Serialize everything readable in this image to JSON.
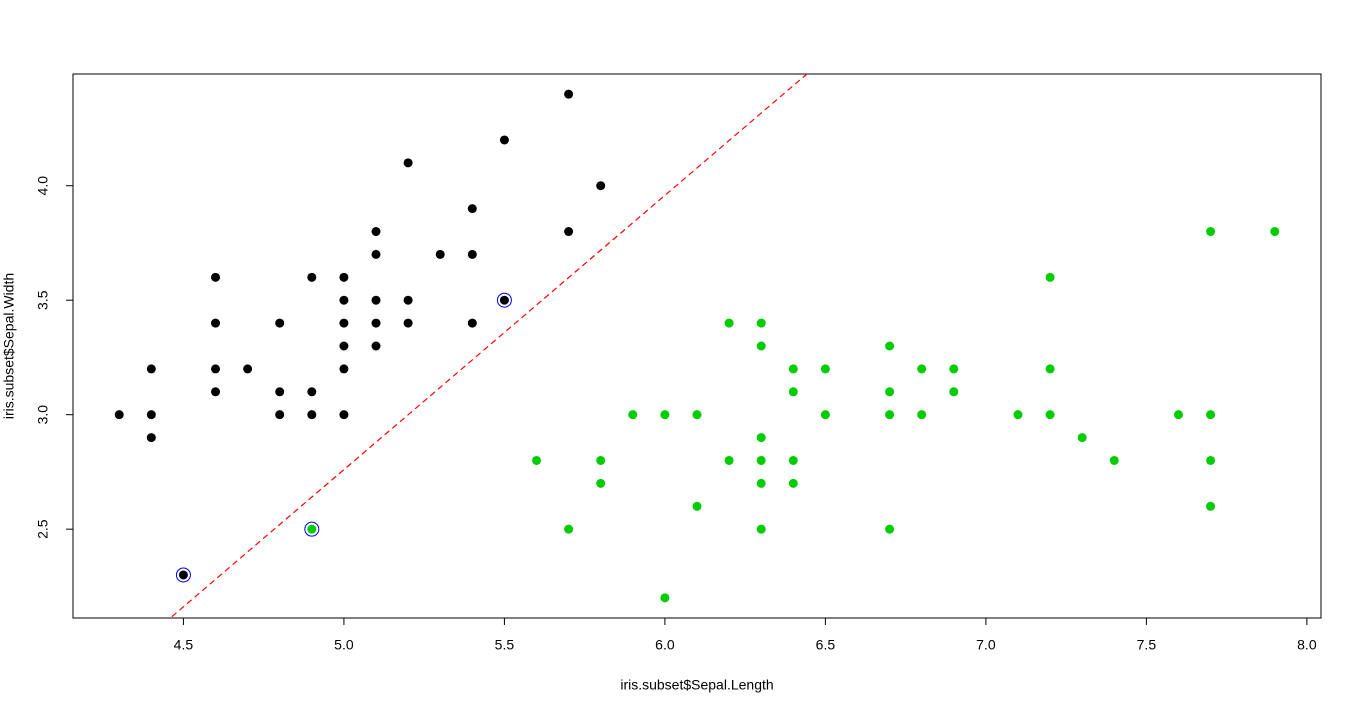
{
  "chart_data": {
    "type": "scatter",
    "x_label": "iris.subset$Sepal.Length",
    "y_label": "iris.subset$Sepal.Width",
    "xlim": [
      4.156,
      8.044
    ],
    "ylim": [
      2.112,
      4.488
    ],
    "xticks": [
      4.5,
      {
        "value": 5,
        "label": "5.0"
      },
      5.5,
      {
        "value": 6,
        "label": "6.0"
      },
      6.5,
      {
        "value": 7,
        "label": "7.0"
      },
      7.5,
      {
        "value": 8,
        "label": "8.0"
      }
    ],
    "yticks": [
      2.5,
      {
        "value": 3,
        "label": "3.0"
      },
      3.5,
      {
        "value": 4,
        "label": "4.0"
      }
    ],
    "series": [
      {
        "color": "#000000",
        "marker": "dot",
        "x": [
          4.3,
          4.4,
          4.4,
          4.4,
          4.5,
          4.6,
          4.6,
          4.6,
          4.6,
          4.7,
          4.8,
          4.8,
          4.8,
          4.9,
          4.9,
          4.9,
          5.0,
          5.0,
          5.0,
          5.0,
          5.0,
          5.0,
          5.1,
          5.1,
          5.1,
          5.1,
          5.1,
          5.2,
          5.2,
          5.2,
          5.3,
          5.4,
          5.4,
          5.4,
          5.5,
          5.5,
          5.7,
          5.7,
          5.8
        ],
        "y": [
          3.0,
          3.2,
          3.0,
          2.9,
          2.3,
          3.6,
          3.4,
          3.2,
          3.1,
          3.2,
          3.4,
          3.1,
          3.0,
          3.6,
          3.1,
          3.0,
          3.6,
          3.5,
          3.4,
          3.3,
          3.2,
          3.0,
          3.8,
          3.7,
          3.5,
          3.4,
          3.3,
          4.1,
          3.5,
          3.4,
          3.7,
          3.9,
          3.7,
          3.4,
          4.2,
          3.5,
          4.4,
          3.8,
          4.0
        ]
      },
      {
        "color": "#00cd00",
        "marker": "dot",
        "x": [
          4.9,
          5.6,
          5.7,
          5.8,
          5.8,
          5.9,
          6.0,
          6.0,
          6.1,
          6.1,
          6.2,
          6.2,
          6.3,
          6.3,
          6.3,
          6.3,
          6.3,
          6.3,
          6.4,
          6.4,
          6.4,
          6.4,
          6.5,
          6.5,
          6.7,
          6.7,
          6.7,
          6.7,
          6.8,
          6.8,
          6.9,
          6.9,
          7.1,
          7.2,
          7.2,
          7.2,
          7.3,
          7.4,
          7.6,
          7.7,
          7.7,
          7.7,
          7.7,
          7.9
        ],
        "y": [
          2.5,
          2.8,
          2.5,
          2.8,
          2.7,
          3.0,
          3.0,
          2.2,
          3.0,
          2.6,
          3.4,
          2.8,
          3.4,
          3.3,
          2.9,
          2.8,
          2.7,
          2.5,
          3.2,
          3.1,
          2.8,
          2.7,
          3.2,
          3.0,
          3.3,
          3.1,
          3.0,
          2.5,
          3.2,
          3.0,
          3.2,
          3.1,
          3.0,
          3.6,
          3.2,
          3.0,
          2.9,
          2.8,
          3.0,
          3.8,
          3.0,
          2.8,
          2.6,
          3.8
        ]
      },
      {
        "color": "#0000ff",
        "marker": "ring",
        "x": [
          4.5,
          4.9,
          5.5
        ],
        "y": [
          2.3,
          2.5,
          3.5
        ]
      }
    ],
    "abline": {
      "intercept": -3.23,
      "slope": 1.198,
      "color": "#ff0000",
      "dash": true
    }
  }
}
